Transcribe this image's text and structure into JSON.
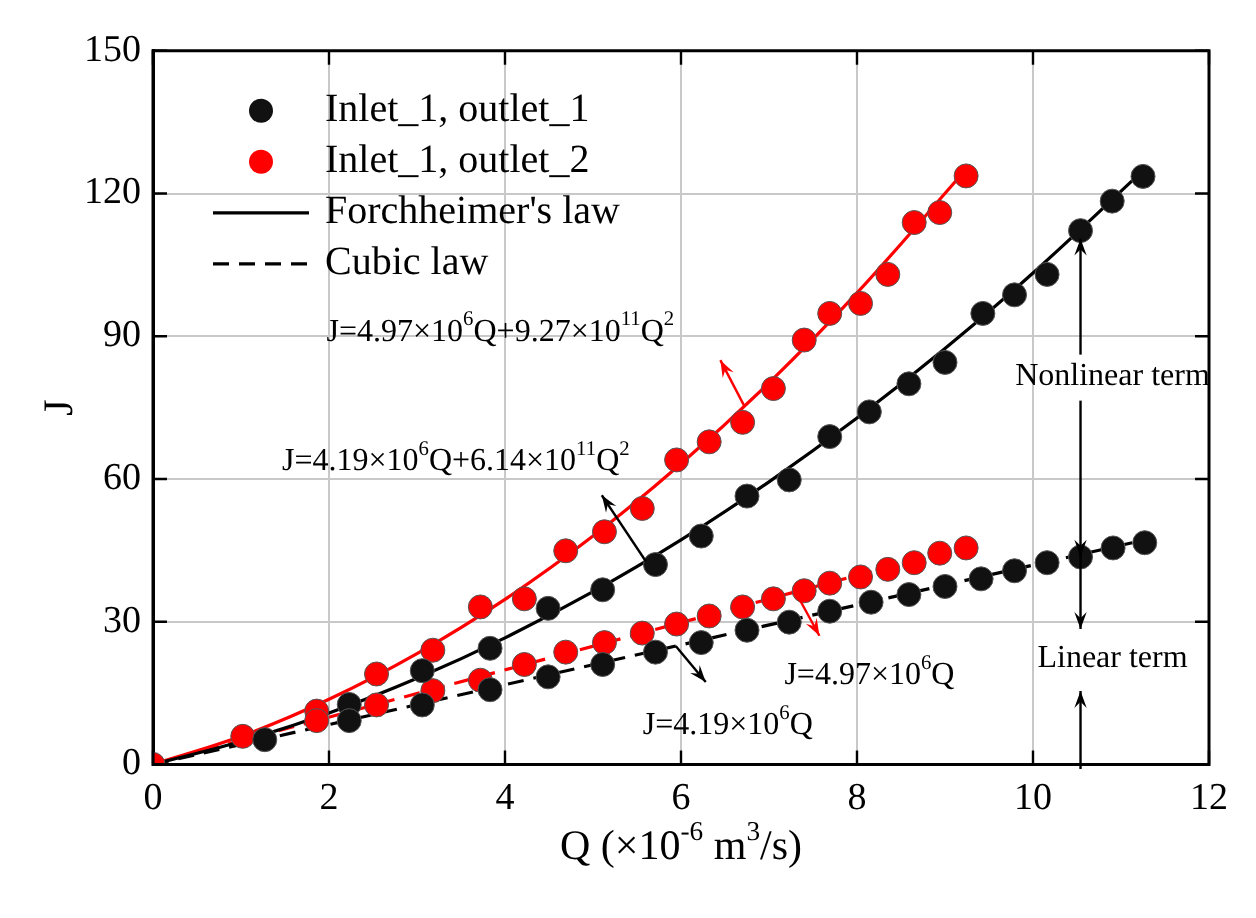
{
  "chart_data": {
    "type": "scatter",
    "ylabel": "J",
    "xlabel": "Q (×10$^{-6}$ m$^{3}$/s)",
    "xlim": [
      0,
      12
    ],
    "xticks": [
      0,
      2,
      4,
      6,
      8,
      10,
      12
    ],
    "ylim": [
      0,
      150
    ],
    "yticks": [
      0,
      30,
      60,
      90,
      120,
      150
    ],
    "grid": true,
    "legend": "top left",
    "series": [
      {
        "name": "Inlet_1, outlet_1",
        "type": "scatter",
        "marker": "circle",
        "color": "#111111",
        "x": [
          1.27,
          2.23,
          3.06,
          3.83,
          4.49,
          5.11,
          5.71,
          6.23,
          6.75,
          7.23,
          7.69,
          8.14,
          8.59,
          9.0,
          9.43,
          9.79,
          10.16,
          10.54,
          10.9,
          11.25,
          2.23,
          3.06,
          3.83,
          4.49,
          5.11,
          5.71,
          6.23,
          6.75,
          7.23,
          7.69,
          8.16,
          8.59,
          9.0,
          9.41,
          9.79,
          10.16,
          10.54,
          10.91,
          11.27
        ],
        "values": [
          5.2,
          12.6,
          19.7,
          24.4,
          32.8,
          36.7,
          42,
          48,
          56.4,
          59.8,
          68.9,
          74.1,
          80,
          84.5,
          94.8,
          98.7,
          103,
          112.2,
          118.4,
          123.6,
          9.2,
          12.5,
          15.7,
          18.4,
          21,
          23.6,
          25.6,
          28.2,
          29.9,
          32.2,
          34.1,
          35.7,
          37.4,
          39,
          40.7,
          42.4,
          43.6,
          45.5,
          46.6
        ]
      },
      {
        "name": "Inlet_1, outlet_2",
        "type": "scatter",
        "marker": "circle",
        "color": "#ff0000",
        "x": [
          0,
          1.02,
          1.86,
          2.54,
          3.18,
          3.72,
          4.22,
          4.69,
          5.13,
          5.56,
          5.95,
          6.32,
          6.7,
          7.05,
          7.4,
          7.69,
          8.04,
          8.35,
          8.65,
          8.94,
          9.24,
          1.86,
          2.54,
          3.18,
          3.72,
          4.22,
          4.69,
          5.13,
          5.56,
          5.95,
          6.32,
          6.7,
          7.05,
          7.4,
          7.69,
          8.04,
          8.35,
          8.65,
          8.94,
          9.24
        ],
        "values": [
          0,
          5.9,
          11.2,
          19,
          24,
          33.1,
          34.8,
          44.9,
          48.9,
          53.8,
          64,
          67.8,
          71.9,
          79,
          89.2,
          94.8,
          96.9,
          103,
          113.9,
          116,
          123.7,
          9.2,
          12.5,
          15.5,
          17.7,
          21,
          23.6,
          25.6,
          27.6,
          29.5,
          31.2,
          33.1,
          34.8,
          36.5,
          38.1,
          39.4,
          41,
          42.4,
          44.4,
          45.5
        ]
      },
      {
        "name": "Forchheimer's law",
        "type": "line",
        "marker": "none",
        "line_style": "solid",
        "color": "#000000",
        "x": [
          0,
          1,
          2,
          3,
          4,
          5,
          6,
          7,
          8,
          9,
          10,
          11.25
        ],
        "values": [
          0,
          4.8,
          10.8,
          18.1,
          26.6,
          36.3,
          47.2,
          59.4,
          72.8,
          87.4,
          103.3,
          124.8
        ]
      },
      {
        "name": "Cubic law",
        "type": "line",
        "marker": "none",
        "line_style": "dashed",
        "color": "#000000",
        "x": [
          0,
          11.27
        ],
        "values": [
          0,
          47.2
        ]
      },
      {
        "type": "line",
        "marker": "none",
        "line_style": "solid",
        "color": "#ff0000",
        "x": [
          0,
          1,
          2,
          3,
          4,
          5,
          6,
          7,
          8,
          9.24
        ],
        "values": [
          0,
          5.9,
          13.7,
          23.3,
          34.7,
          48,
          63.2,
          80.2,
          99.1,
          125.1
        ]
      },
      {
        "type": "line",
        "marker": "none",
        "line_style": "dashed",
        "color": "#ff0000",
        "x": [
          0,
          9.24
        ],
        "values": [
          0,
          45.9
        ]
      }
    ],
    "annotations": [
      {
        "text": "J=4.97×10$^{6}$Q+9.27×10$^{11}$Q$^{2}$",
        "x": 6.72,
        "y": 75.3
      },
      {
        "text": "J=4.19×10$^{6}$Q+6.14×10$^{11}$Q$^{2}$",
        "x": 5.6,
        "y": 42.7
      },
      {
        "text": "J=4.97×10$^{6}$Q",
        "x": 7.3,
        "y": 36.3
      },
      {
        "text": "J=4.19×10$^{6}$Q",
        "x": 5.94,
        "y": 24.9
      },
      {
        "text": "Nonlinear term",
        "x": 10.54,
        "y": 112.2
      },
      {
        "text": "Linear term",
        "x": 10.54,
        "y": 43.6
      }
    ]
  }
}
